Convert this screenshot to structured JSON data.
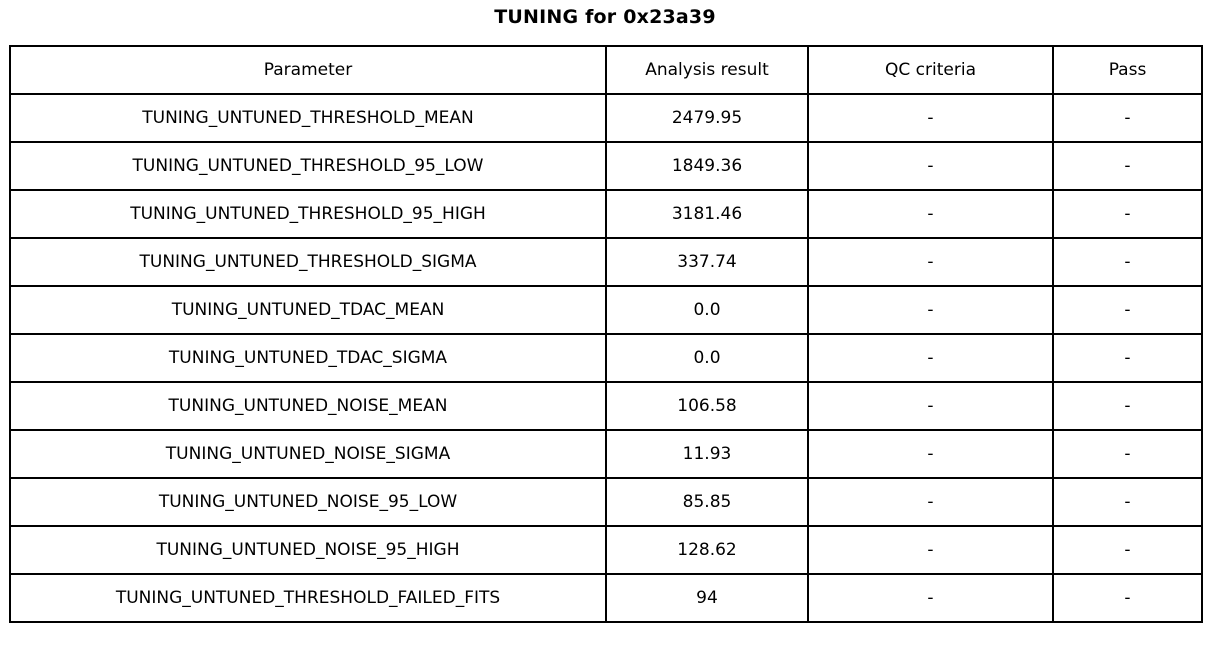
{
  "title": "TUNING for 0x23a39",
  "chart_data": {
    "type": "table",
    "title": "TUNING for 0x23a39",
    "columns": [
      "Parameter",
      "Analysis result",
      "QC criteria",
      "Pass"
    ],
    "rows": [
      {
        "parameter": "TUNING_UNTUNED_THRESHOLD_MEAN",
        "analysis_result": "2479.95",
        "qc_criteria": "-",
        "pass": "-"
      },
      {
        "parameter": "TUNING_UNTUNED_THRESHOLD_95_LOW",
        "analysis_result": "1849.36",
        "qc_criteria": "-",
        "pass": "-"
      },
      {
        "parameter": "TUNING_UNTUNED_THRESHOLD_95_HIGH",
        "analysis_result": "3181.46",
        "qc_criteria": "-",
        "pass": "-"
      },
      {
        "parameter": "TUNING_UNTUNED_THRESHOLD_SIGMA",
        "analysis_result": "337.74",
        "qc_criteria": "-",
        "pass": "-"
      },
      {
        "parameter": "TUNING_UNTUNED_TDAC_MEAN",
        "analysis_result": "0.0",
        "qc_criteria": "-",
        "pass": "-"
      },
      {
        "parameter": "TUNING_UNTUNED_TDAC_SIGMA",
        "analysis_result": "0.0",
        "qc_criteria": "-",
        "pass": "-"
      },
      {
        "parameter": "TUNING_UNTUNED_NOISE_MEAN",
        "analysis_result": "106.58",
        "qc_criteria": "-",
        "pass": "-"
      },
      {
        "parameter": "TUNING_UNTUNED_NOISE_SIGMA",
        "analysis_result": "11.93",
        "qc_criteria": "-",
        "pass": "-"
      },
      {
        "parameter": "TUNING_UNTUNED_NOISE_95_LOW",
        "analysis_result": "85.85",
        "qc_criteria": "-",
        "pass": "-"
      },
      {
        "parameter": "TUNING_UNTUNED_NOISE_95_HIGH",
        "analysis_result": "128.62",
        "qc_criteria": "-",
        "pass": "-"
      },
      {
        "parameter": "TUNING_UNTUNED_THRESHOLD_FAILED_FITS",
        "analysis_result": "94",
        "qc_criteria": "-",
        "pass": "-"
      }
    ],
    "layout": {
      "grid": true,
      "border_color": "#000000",
      "background": "#ffffff"
    }
  }
}
